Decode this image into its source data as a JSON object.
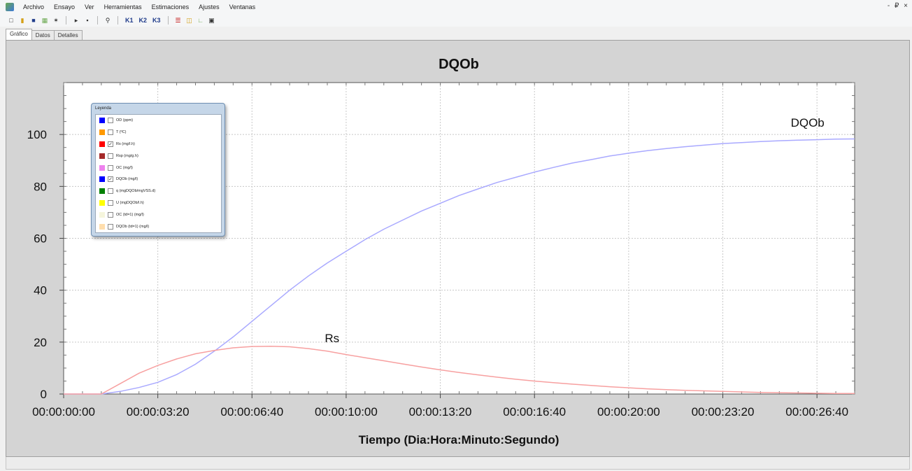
{
  "menu": {
    "items": [
      "Archivo",
      "Ensayo",
      "Ver",
      "Herramientas",
      "Estimaciones",
      "Ajustes",
      "Ventanas"
    ],
    "window_controls": "- ₽ ×"
  },
  "toolbar": {
    "icons": [
      "new-icon",
      "open-icon",
      "save-icon",
      "export-icon",
      "settings-icon",
      "play-icon",
      "stop-icon",
      "zoom-icon",
      "k1-button",
      "k2-button",
      "k3-button",
      "bars-icon",
      "grid-icon",
      "chart-icon",
      "image-icon"
    ],
    "k1": "K1",
    "k2": "K2",
    "k3": "K3"
  },
  "tabs": [
    "Gráfico",
    "Datos",
    "Detalles"
  ],
  "legend": {
    "title": "Leyenda",
    "items": [
      {
        "label": "OD (ppm)",
        "color": "#0000ff",
        "checked": false
      },
      {
        "label": "T (ºC)",
        "color": "#ff9900",
        "checked": false
      },
      {
        "label": "Rs (mg/l.h)",
        "color": "#ff0000",
        "checked": true
      },
      {
        "label": "Rsp (mg/g.h)",
        "color": "#a52a2a",
        "checked": false
      },
      {
        "label": "OC (mg/l)",
        "color": "#ee82ee",
        "checked": false
      },
      {
        "label": "DQOb (mg/l)",
        "color": "#0000ff",
        "checked": true
      },
      {
        "label": "q (mgDQOb/mgVSS.d)",
        "color": "#008000",
        "checked": false
      },
      {
        "label": "U (mgDQOb/l.h)",
        "color": "#ffff00",
        "checked": false
      },
      {
        "label": "OC (td=1) (mg/l)",
        "color": "#f5f5dc",
        "checked": false
      },
      {
        "label": "DQOb (td=1) (mg/l)",
        "color": "#ffdead",
        "checked": false
      }
    ]
  },
  "chart_data": {
    "type": "line",
    "title": "DQOb",
    "xlabel": "Tiempo (Dia:Hora:Minuto:Segundo)",
    "ylabel": "",
    "x_ticks": [
      "00:00:00:00",
      "00:00:03:20",
      "00:00:06:40",
      "00:00:10:00",
      "00:00:13:20",
      "00:00:16:40",
      "00:00:20:00",
      "00:00:23:20",
      "00:00:26:40"
    ],
    "x_unit": "seconds",
    "xlim": [
      0,
      1680
    ],
    "ylim": [
      0,
      120
    ],
    "y_ticks": [
      0,
      20,
      40,
      60,
      80,
      100
    ],
    "grid": true,
    "annotations": [
      {
        "text": "DQOb",
        "x": 1580,
        "y": 103
      },
      {
        "text": "Rs",
        "x": 570,
        "y": 20
      }
    ],
    "series": [
      {
        "name": "DQOb",
        "color": "#a9a9ff",
        "x": [
          0,
          40,
          80,
          120,
          160,
          200,
          240,
          280,
          320,
          360,
          400,
          440,
          480,
          520,
          560,
          600,
          640,
          680,
          720,
          760,
          800,
          840,
          880,
          920,
          960,
          1000,
          1040,
          1080,
          1120,
          1160,
          1200,
          1240,
          1280,
          1320,
          1360,
          1400,
          1440,
          1480,
          1520,
          1560,
          1600,
          1640,
          1680
        ],
        "values": [
          0,
          0,
          0,
          1,
          2.5,
          4.5,
          7.5,
          11.5,
          16.5,
          22,
          28,
          34,
          40,
          45.5,
          50.5,
          55,
          59.5,
          63.5,
          67,
          70.5,
          73.5,
          76.5,
          79,
          81.5,
          83.5,
          85.5,
          87.3,
          89,
          90.3,
          91.7,
          92.8,
          93.8,
          94.6,
          95.3,
          95.9,
          96.5,
          96.9,
          97.3,
          97.6,
          97.8,
          98,
          98.2,
          98.3
        ]
      },
      {
        "name": "Rs",
        "color": "#f7a0a0",
        "x": [
          0,
          40,
          80,
          120,
          160,
          200,
          240,
          280,
          320,
          360,
          400,
          440,
          480,
          520,
          560,
          600,
          640,
          680,
          720,
          760,
          800,
          840,
          880,
          920,
          960,
          1000,
          1040,
          1080,
          1120,
          1160,
          1200,
          1240,
          1280,
          1320,
          1360,
          1400,
          1440,
          1480,
          1520,
          1560,
          1600,
          1640,
          1680
        ],
        "values": [
          0,
          0,
          0,
          4,
          8,
          11,
          13.5,
          15.5,
          16.8,
          17.8,
          18.3,
          18.4,
          18.2,
          17.5,
          16.5,
          15.2,
          14,
          12.8,
          11.6,
          10.4,
          9.3,
          8.3,
          7.4,
          6.5,
          5.7,
          5,
          4.4,
          3.8,
          3.3,
          2.8,
          2.4,
          2,
          1.7,
          1.4,
          1.2,
          1,
          0.8,
          0.6,
          0.5,
          0.4,
          0.3,
          0.2,
          0.2
        ]
      }
    ]
  }
}
